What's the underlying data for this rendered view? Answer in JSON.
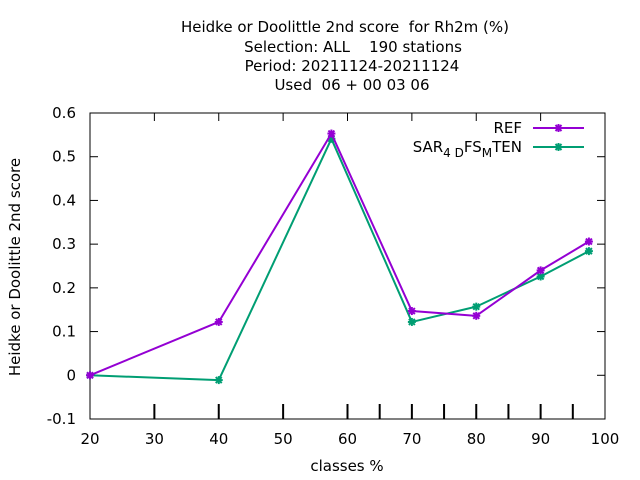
{
  "chart_data": {
    "type": "line",
    "title_lines": [
      "Heidke or Doolittle 2nd score  for Rh2m (%)",
      "Selection: ALL    190 stations",
      "Period: 20211124-20211124",
      "Used  06 + 00 03 06"
    ],
    "xlabel": "classes %",
    "ylabel": "Heidke or Doolittle 2nd score",
    "xlim": [
      20,
      100
    ],
    "ylim": [
      -0.1,
      0.6
    ],
    "xticks": [
      20,
      30,
      40,
      50,
      60,
      70,
      80,
      90,
      100
    ],
    "yticks": [
      -0.1,
      0,
      0.1,
      0.2,
      0.3,
      0.4,
      0.5,
      0.6
    ],
    "ytick_labels": [
      "-0.1",
      "0",
      "0.1",
      "0.2",
      "0.3",
      "0.4",
      "0.5",
      "0.6"
    ],
    "extra_x_tick_marks": [
      65,
      75,
      85,
      95
    ],
    "legend_position": "top-right",
    "grid": false,
    "series": [
      {
        "name": "REF",
        "color": "#9400d3",
        "x": [
          20,
          40,
          57.5,
          70,
          80,
          90,
          97.5
        ],
        "y": [
          0.0,
          0.122,
          0.553,
          0.147,
          0.136,
          0.24,
          0.306
        ]
      },
      {
        "name": "SAR_4D FS_M TEN",
        "legend_parts": {
          "a": "SAR",
          "b": "4 D",
          "c": "FS",
          "d": "M",
          "e": "TEN"
        },
        "color": "#009e73",
        "x": [
          20,
          40,
          57.5,
          70,
          80,
          90,
          97.5
        ],
        "y": [
          0.0,
          -0.011,
          0.541,
          0.122,
          0.157,
          0.226,
          0.284
        ]
      }
    ]
  }
}
